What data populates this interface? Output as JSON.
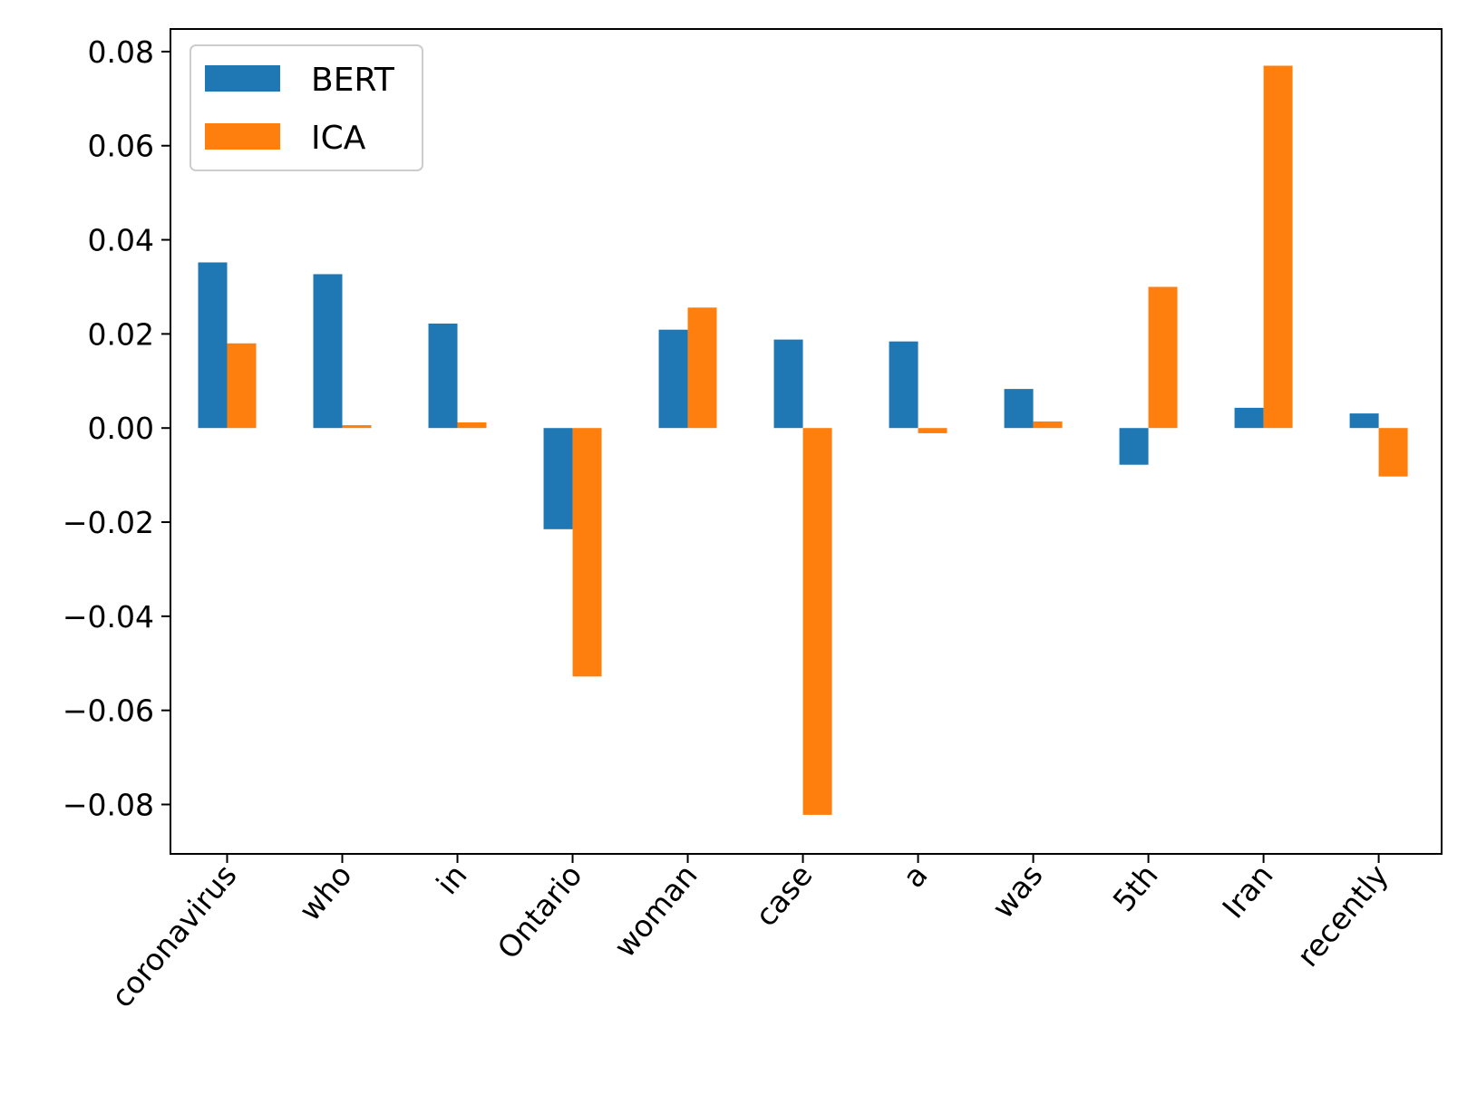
{
  "chart_data": {
    "type": "bar",
    "title": "",
    "xlabel": "",
    "ylabel": "",
    "categories": [
      "coronavirus",
      "who",
      "in",
      "Ontario",
      "woman",
      "case",
      "a",
      "was",
      "5th",
      "Iran",
      "recently"
    ],
    "series": [
      {
        "name": "BERT",
        "color": "#1f77b4",
        "values": [
          0.0352,
          0.0327,
          0.0222,
          -0.0215,
          0.0209,
          0.0188,
          0.0184,
          0.0083,
          -0.0078,
          0.0043,
          0.0031
        ]
      },
      {
        "name": "ICA",
        "color": "#ff7f0e",
        "values": [
          0.018,
          0.0006,
          0.0012,
          -0.0528,
          0.0256,
          -0.0822,
          -0.0011,
          0.0014,
          0.03,
          0.077,
          -0.0103
        ]
      }
    ],
    "ylim": [
      -0.0905,
      0.0848
    ],
    "yticks": [
      "−0.08",
      "−0.06",
      "−0.04",
      "−0.02",
      "0.00",
      "0.02",
      "0.04",
      "0.06",
      "0.08"
    ],
    "ytick_values": [
      -0.08,
      -0.06,
      -0.04,
      -0.02,
      0.0,
      0.02,
      0.04,
      0.06,
      0.08
    ],
    "legend_position": "upper-left",
    "grid": false
  }
}
